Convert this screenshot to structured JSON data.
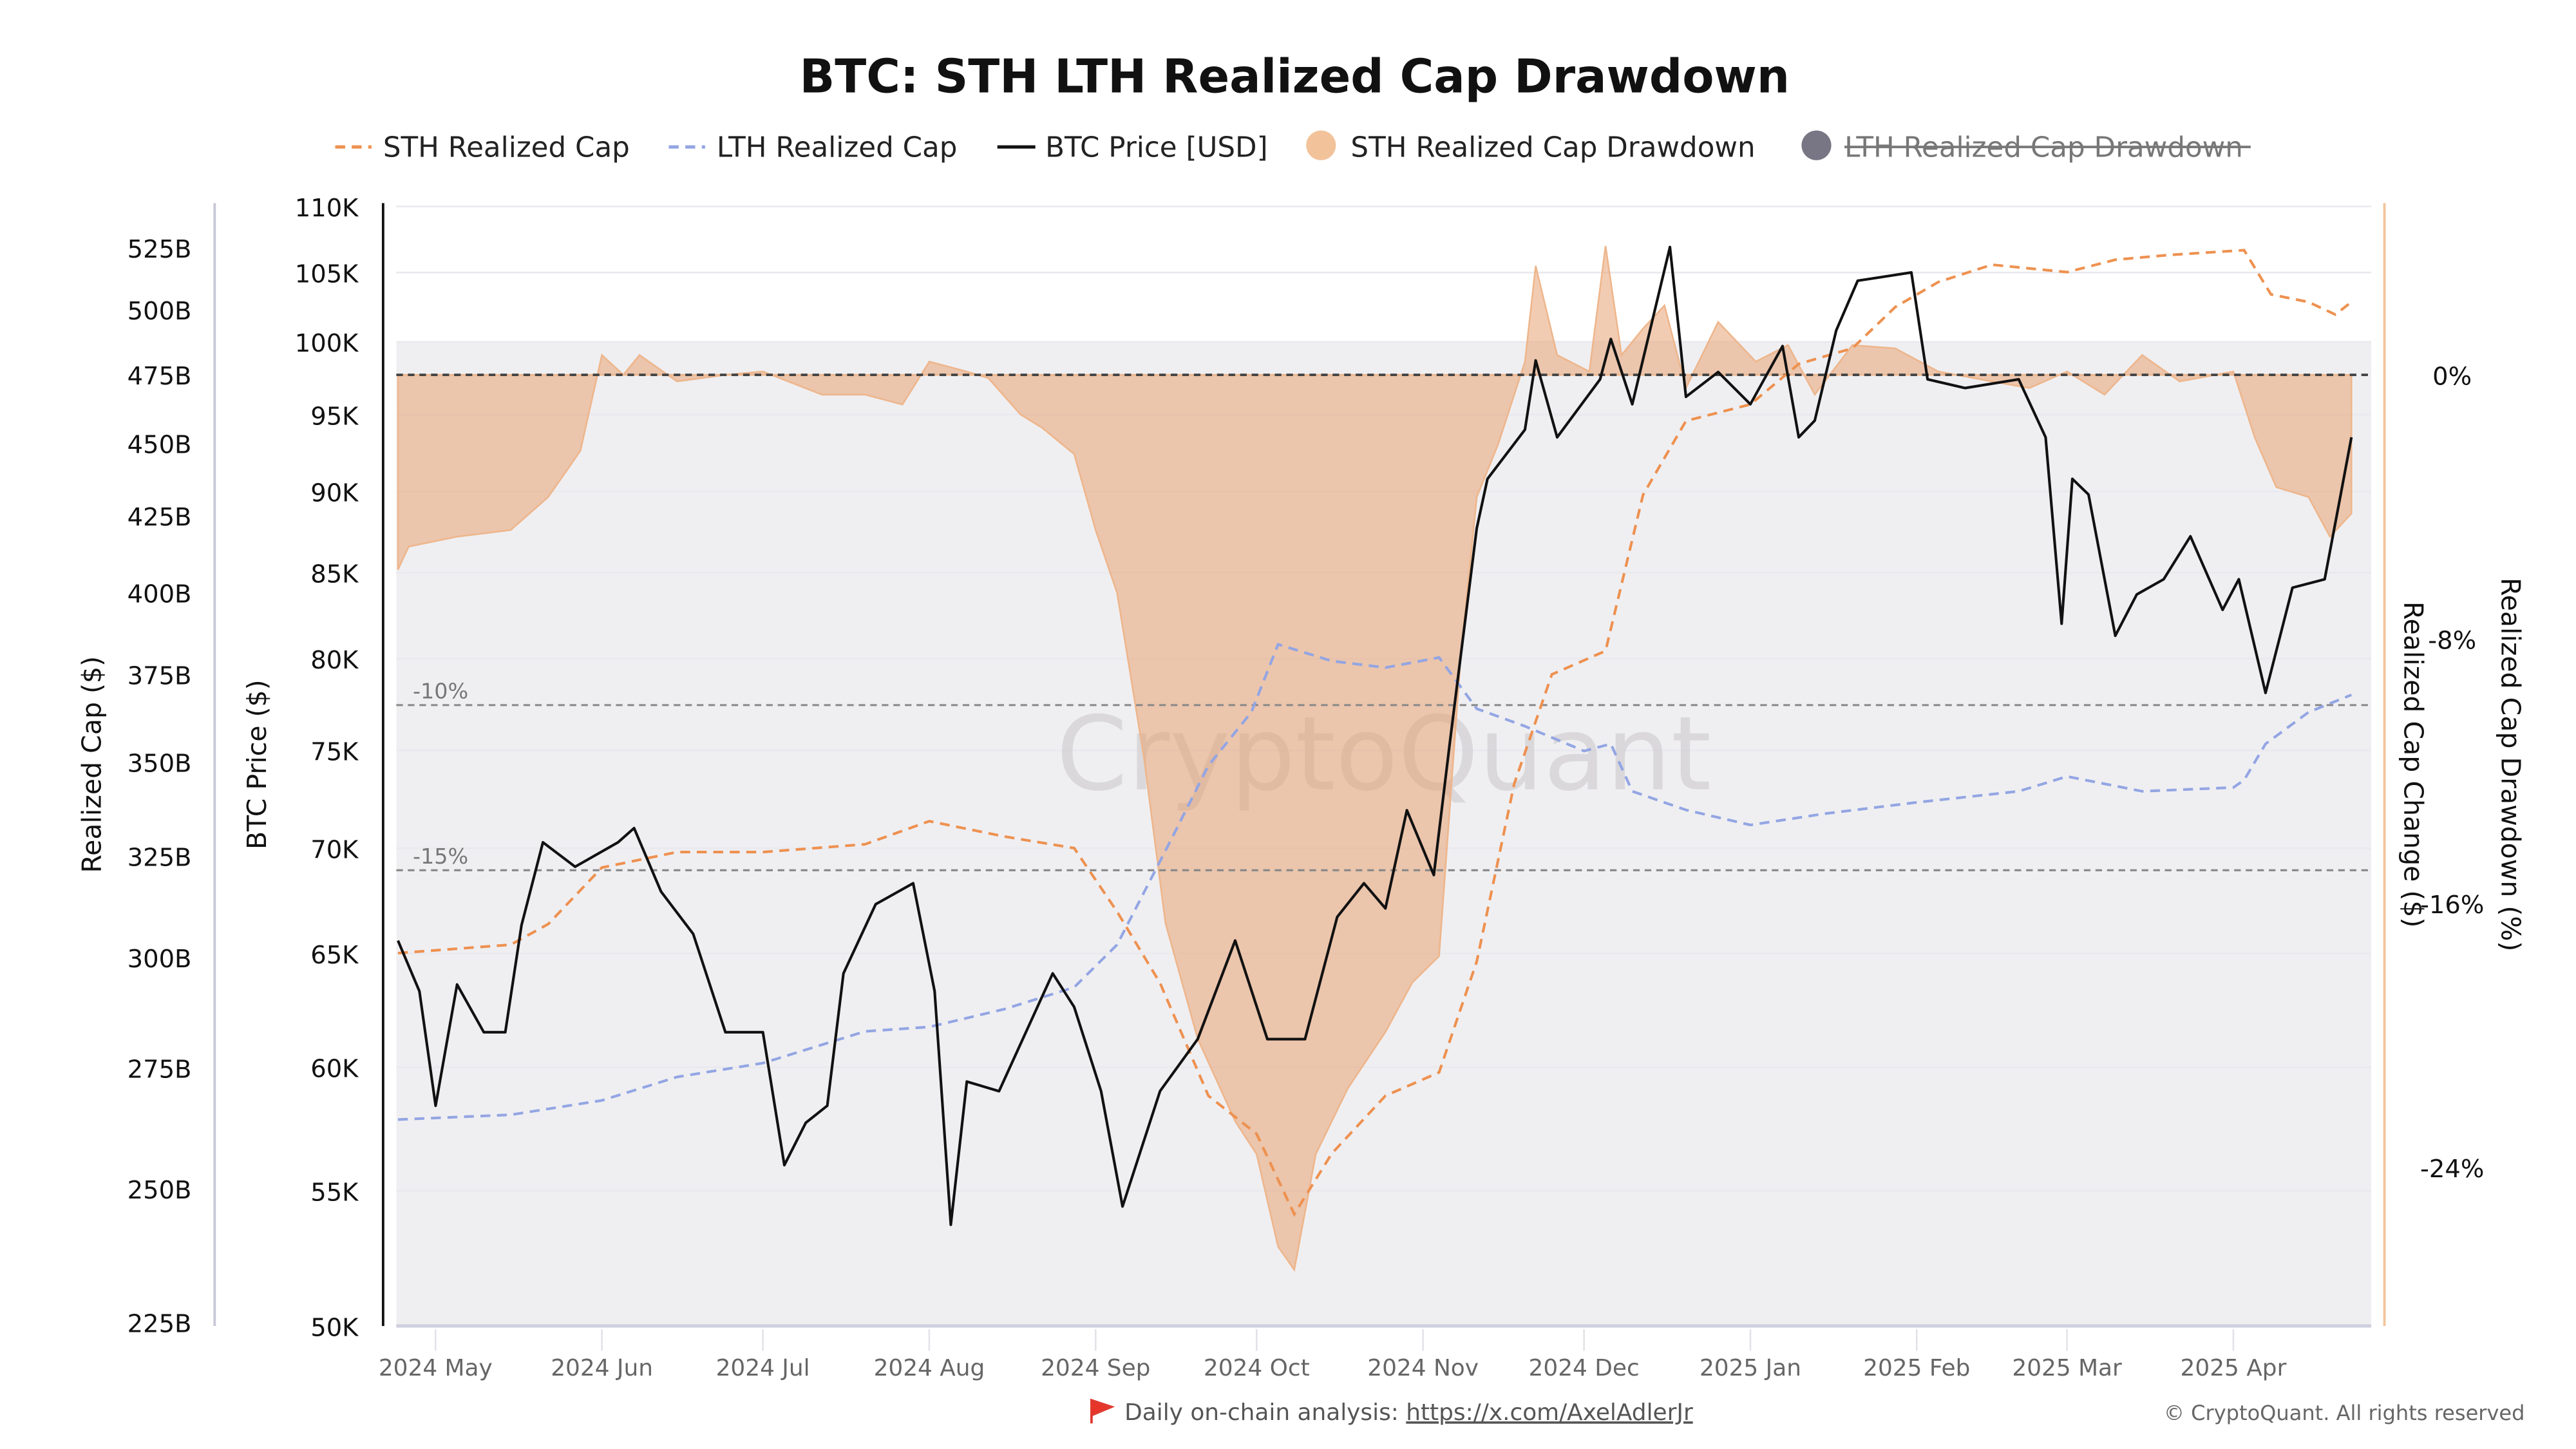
{
  "chart_data": {
    "type": "line",
    "title": "BTC: STH LTH Realized Cap Drawdown",
    "legend": {
      "position": "top",
      "items": [
        {
          "label": "STH Realized Cap",
          "color": "#ee9150",
          "style": "dashed",
          "active": true
        },
        {
          "label": "LTH Realized Cap",
          "color": "#93a5e3",
          "style": "dashed",
          "active": true
        },
        {
          "label": "BTC Price [USD]",
          "color": "#111111",
          "style": "solid",
          "active": true
        },
        {
          "label": "STH Realized Cap Drawdown",
          "color": "#f2c39b",
          "style": "area",
          "active": true
        },
        {
          "label": "LTH Realized Cap Drawdown",
          "color": "#787684",
          "style": "area",
          "active": false
        }
      ]
    },
    "x_axis": {
      "type": "date",
      "range": [
        "2024-04-24",
        "2025-04-23"
      ],
      "ticks": [
        [
          "2024-05-01",
          "2024 May"
        ],
        [
          "2024-06-01",
          "2024 Jun"
        ],
        [
          "2024-07-01",
          "2024 Jul"
        ],
        [
          "2024-08-01",
          "2024 Aug"
        ],
        [
          "2024-09-01",
          "2024 Sep"
        ],
        [
          "2024-10-01",
          "2024 Oct"
        ],
        [
          "2024-11-01",
          "2024 Nov"
        ],
        [
          "2024-12-01",
          "2024 Dec"
        ],
        [
          "2025-01-01",
          "2025 Jan"
        ],
        [
          "2025-02-01",
          "2025 Feb"
        ],
        [
          "2025-03-01",
          "2025 Mar"
        ],
        [
          "2025-04-01",
          "2025 Apr"
        ]
      ]
    },
    "y_axes": {
      "realized_cap": {
        "label": "Realized Cap ($)",
        "scale": "log",
        "range": [
          225,
          525
        ],
        "unit": "B",
        "ticks": [
          "525B",
          "500B",
          "475B",
          "450B",
          "425B",
          "400B",
          "375B",
          "350B",
          "325B",
          "300B",
          "275B",
          "250B",
          "225B"
        ]
      },
      "price": {
        "label": "BTC Price ($)",
        "scale": "log",
        "range": [
          50,
          110
        ],
        "unit": "K",
        "ticks": [
          "110K",
          "105K",
          "100K",
          "95K",
          "90K",
          "85K",
          "80K",
          "75K",
          "70K",
          "65K",
          "60K",
          "55K",
          "50K"
        ]
      },
      "change": {
        "label": "Realized Cap Change ($)"
      },
      "drawdown": {
        "label": "Realized Cap Drawdown (%)",
        "scale": "linear",
        "ticks": [
          "0%",
          "-8%",
          "-16%",
          "-24%"
        ],
        "tick_values": [
          0,
          -8,
          -16,
          -24
        ]
      }
    },
    "reference_lines": [
      {
        "value": 0,
        "label": ""
      },
      {
        "value": -10,
        "label": "-10%"
      },
      {
        "value": -15,
        "label": "-15%"
      }
    ],
    "grid": true,
    "series": [
      {
        "name": "BTC Price [USD]",
        "axis": "price",
        "unit": "K USD",
        "points": [
          [
            "2024-04-24",
            65.6
          ],
          [
            "2024-04-28",
            63.3
          ],
          [
            "2024-05-01",
            58.4
          ],
          [
            "2024-05-05",
            63.6
          ],
          [
            "2024-05-10",
            61.5
          ],
          [
            "2024-05-14",
            61.5
          ],
          [
            "2024-05-17",
            66.3
          ],
          [
            "2024-05-21",
            70.3
          ],
          [
            "2024-05-27",
            69.1
          ],
          [
            "2024-06-04",
            70.3
          ],
          [
            "2024-06-07",
            71.0
          ],
          [
            "2024-06-12",
            67.9
          ],
          [
            "2024-06-18",
            65.9
          ],
          [
            "2024-06-24",
            61.5
          ],
          [
            "2024-07-01",
            61.5
          ],
          [
            "2024-07-05",
            56.0
          ],
          [
            "2024-07-09",
            57.7
          ],
          [
            "2024-07-13",
            58.4
          ],
          [
            "2024-07-16",
            64.1
          ],
          [
            "2024-07-22",
            67.3
          ],
          [
            "2024-07-29",
            68.3
          ],
          [
            "2024-08-02",
            63.3
          ],
          [
            "2024-08-05",
            53.7
          ],
          [
            "2024-08-08",
            59.4
          ],
          [
            "2024-08-14",
            59.0
          ],
          [
            "2024-08-24",
            64.1
          ],
          [
            "2024-08-28",
            62.6
          ],
          [
            "2024-09-02",
            59.0
          ],
          [
            "2024-09-06",
            54.4
          ],
          [
            "2024-09-13",
            59.0
          ],
          [
            "2024-09-20",
            61.2
          ],
          [
            "2024-09-27",
            65.6
          ],
          [
            "2024-10-03",
            61.2
          ],
          [
            "2024-10-10",
            61.2
          ],
          [
            "2024-10-16",
            66.7
          ],
          [
            "2024-10-21",
            68.3
          ],
          [
            "2024-10-25",
            67.1
          ],
          [
            "2024-10-29",
            71.9
          ],
          [
            "2024-11-03",
            68.7
          ],
          [
            "2024-11-06",
            75.4
          ],
          [
            "2024-11-11",
            87.7
          ],
          [
            "2024-11-13",
            90.8
          ],
          [
            "2024-11-20",
            94.0
          ],
          [
            "2024-11-22",
            98.7
          ],
          [
            "2024-11-26",
            93.5
          ],
          [
            "2024-12-04",
            97.4
          ],
          [
            "2024-12-06",
            100.2
          ],
          [
            "2024-12-10",
            95.7
          ],
          [
            "2024-12-17",
            106.9
          ],
          [
            "2024-12-20",
            96.2
          ],
          [
            "2024-12-26",
            97.9
          ],
          [
            "2025-01-01",
            95.7
          ],
          [
            "2025-01-07",
            99.7
          ],
          [
            "2025-01-10",
            93.5
          ],
          [
            "2025-01-13",
            94.6
          ],
          [
            "2025-01-17",
            100.8
          ],
          [
            "2025-01-21",
            104.4
          ],
          [
            "2025-01-31",
            105.0
          ],
          [
            "2025-02-03",
            97.4
          ],
          [
            "2025-02-10",
            96.8
          ],
          [
            "2025-02-20",
            97.4
          ],
          [
            "2025-02-25",
            93.5
          ],
          [
            "2025-02-28",
            82.0
          ],
          [
            "2025-03-02",
            90.8
          ],
          [
            "2025-03-05",
            89.8
          ],
          [
            "2025-03-10",
            81.3
          ],
          [
            "2025-03-14",
            83.7
          ],
          [
            "2025-03-19",
            84.6
          ],
          [
            "2025-03-24",
            87.2
          ],
          [
            "2025-03-30",
            82.8
          ],
          [
            "2025-04-02",
            84.6
          ],
          [
            "2025-04-07",
            78.1
          ],
          [
            "2025-04-12",
            84.1
          ],
          [
            "2025-04-18",
            84.6
          ],
          [
            "2025-04-21",
            89.8
          ],
          [
            "2025-04-23",
            93.5
          ]
        ]
      },
      {
        "name": "STH Realized Cap",
        "axis": "realized_cap",
        "unit": "B USD",
        "points": [
          [
            "2024-04-24",
            301
          ],
          [
            "2024-05-15",
            303
          ],
          [
            "2024-05-22",
            308
          ],
          [
            "2024-06-01",
            322
          ],
          [
            "2024-06-15",
            326
          ],
          [
            "2024-07-01",
            326
          ],
          [
            "2024-07-20",
            328
          ],
          [
            "2024-08-01",
            334
          ],
          [
            "2024-08-15",
            330
          ],
          [
            "2024-08-28",
            327
          ],
          [
            "2024-09-05",
            311
          ],
          [
            "2024-09-13",
            294
          ],
          [
            "2024-09-22",
            269
          ],
          [
            "2024-10-01",
            261
          ],
          [
            "2024-10-08",
            245
          ],
          [
            "2024-10-15",
            257
          ],
          [
            "2024-10-25",
            269
          ],
          [
            "2024-11-04",
            274
          ],
          [
            "2024-11-11",
            299
          ],
          [
            "2024-11-18",
            344
          ],
          [
            "2024-11-25",
            375
          ],
          [
            "2024-12-05",
            382
          ],
          [
            "2024-12-12",
            432
          ],
          [
            "2024-12-20",
            458
          ],
          [
            "2025-01-01",
            464
          ],
          [
            "2025-01-10",
            479
          ],
          [
            "2025-01-20",
            485
          ],
          [
            "2025-01-28",
            501
          ],
          [
            "2025-02-05",
            511
          ],
          [
            "2025-02-15",
            518
          ],
          [
            "2025-03-01",
            515
          ],
          [
            "2025-03-10",
            520
          ],
          [
            "2025-03-20",
            522
          ],
          [
            "2025-04-03",
            524
          ],
          [
            "2025-04-08",
            506
          ],
          [
            "2025-04-15",
            503
          ],
          [
            "2025-04-20",
            498
          ],
          [
            "2025-04-23",
            503
          ]
        ]
      },
      {
        "name": "LTH Realized Cap",
        "axis": "realized_cap",
        "unit": "B USD",
        "points": [
          [
            "2024-04-24",
            264
          ],
          [
            "2024-05-15",
            265
          ],
          [
            "2024-06-01",
            268
          ],
          [
            "2024-06-15",
            273
          ],
          [
            "2024-07-01",
            276
          ],
          [
            "2024-07-20",
            283
          ],
          [
            "2024-08-01",
            284
          ],
          [
            "2024-08-15",
            288
          ],
          [
            "2024-08-28",
            293
          ],
          [
            "2024-09-05",
            303
          ],
          [
            "2024-09-15",
            329
          ],
          [
            "2024-09-22",
            349
          ],
          [
            "2024-09-30",
            364
          ],
          [
            "2024-10-05",
            384
          ],
          [
            "2024-10-15",
            379
          ],
          [
            "2024-10-25",
            377
          ],
          [
            "2024-11-04",
            380
          ],
          [
            "2024-11-11",
            365
          ],
          [
            "2024-11-20",
            360
          ],
          [
            "2024-12-01",
            353
          ],
          [
            "2024-12-06",
            355
          ],
          [
            "2024-12-10",
            342
          ],
          [
            "2024-12-20",
            337
          ],
          [
            "2025-01-01",
            333
          ],
          [
            "2025-01-15",
            336
          ],
          [
            "2025-02-01",
            339
          ],
          [
            "2025-02-20",
            342
          ],
          [
            "2025-03-01",
            346
          ],
          [
            "2025-03-15",
            342
          ],
          [
            "2025-04-01",
            343
          ],
          [
            "2025-04-03",
            345
          ],
          [
            "2025-04-07",
            355
          ],
          [
            "2025-04-15",
            364
          ],
          [
            "2025-04-23",
            369
          ]
        ]
      },
      {
        "name": "STH Realized Cap Drawdown",
        "axis": "drawdown",
        "unit": "%",
        "points": [
          [
            "2024-04-24",
            -5.9
          ],
          [
            "2024-04-26",
            -5.2
          ],
          [
            "2024-05-05",
            -4.9
          ],
          [
            "2024-05-15",
            -4.7
          ],
          [
            "2024-05-22",
            -3.7
          ],
          [
            "2024-05-28",
            -2.3
          ],
          [
            "2024-06-01",
            0.6
          ],
          [
            "2024-06-05",
            0.0
          ],
          [
            "2024-06-08",
            0.6
          ],
          [
            "2024-06-15",
            -0.2
          ],
          [
            "2024-06-24",
            0.0
          ],
          [
            "2024-07-01",
            0.1
          ],
          [
            "2024-07-12",
            -0.6
          ],
          [
            "2024-07-20",
            -0.6
          ],
          [
            "2024-07-27",
            -0.9
          ],
          [
            "2024-08-01",
            0.4
          ],
          [
            "2024-08-08",
            0.1
          ],
          [
            "2024-08-12",
            -0.1
          ],
          [
            "2024-08-18",
            -1.2
          ],
          [
            "2024-08-22",
            -1.6
          ],
          [
            "2024-08-28",
            -2.4
          ],
          [
            "2024-09-01",
            -4.7
          ],
          [
            "2024-09-05",
            -6.6
          ],
          [
            "2024-09-10",
            -11.6
          ],
          [
            "2024-09-14",
            -16.6
          ],
          [
            "2024-09-20",
            -20.1
          ],
          [
            "2024-09-27",
            -22.6
          ],
          [
            "2024-10-01",
            -23.6
          ],
          [
            "2024-10-05",
            -26.4
          ],
          [
            "2024-10-08",
            -27.1
          ],
          [
            "2024-10-12",
            -23.6
          ],
          [
            "2024-10-18",
            -21.6
          ],
          [
            "2024-10-25",
            -19.9
          ],
          [
            "2024-10-30",
            -18.4
          ],
          [
            "2024-11-04",
            -17.6
          ],
          [
            "2024-11-08",
            -8.6
          ],
          [
            "2024-11-11",
            -3.7
          ],
          [
            "2024-11-15",
            -2.1
          ],
          [
            "2024-11-20",
            0.4
          ],
          [
            "2024-11-22",
            3.3
          ],
          [
            "2024-11-26",
            0.6
          ],
          [
            "2024-12-02",
            0.1
          ],
          [
            "2024-12-05",
            3.9
          ],
          [
            "2024-12-08",
            0.6
          ],
          [
            "2024-12-12",
            1.4
          ],
          [
            "2024-12-16",
            2.1
          ],
          [
            "2024-12-20",
            -0.4
          ],
          [
            "2024-12-26",
            1.6
          ],
          [
            "2025-01-02",
            0.4
          ],
          [
            "2025-01-08",
            0.9
          ],
          [
            "2025-01-13",
            -0.6
          ],
          [
            "2025-01-20",
            0.9
          ],
          [
            "2025-01-28",
            0.8
          ],
          [
            "2025-02-05",
            0.1
          ],
          [
            "2025-02-15",
            -0.2
          ],
          [
            "2025-02-22",
            -0.4
          ],
          [
            "2025-03-01",
            0.1
          ],
          [
            "2025-03-08",
            -0.6
          ],
          [
            "2025-03-15",
            0.6
          ],
          [
            "2025-03-22",
            -0.2
          ],
          [
            "2025-04-01",
            0.1
          ],
          [
            "2025-04-05",
            -1.9
          ],
          [
            "2025-04-09",
            -3.4
          ],
          [
            "2025-04-15",
            -3.7
          ],
          [
            "2025-04-19",
            -4.9
          ],
          [
            "2025-04-23",
            -4.2
          ]
        ]
      }
    ],
    "watermark": "CryptoQuant"
  },
  "footer": {
    "flag_icon": "red-flag-icon",
    "prefix": "Daily on-chain analysis: ",
    "link": "https://x.com/AxelAdlerJr",
    "copyright": "© CryptoQuant. All rights reserved"
  }
}
